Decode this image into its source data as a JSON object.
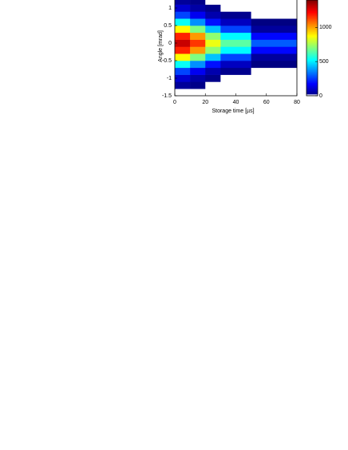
{
  "chart_data": {
    "type": "heatmap",
    "xlabel": "Storage time [µs]",
    "ylabel": "Angle [mrad]",
    "x_edges": [
      0,
      10,
      20,
      30,
      50,
      80
    ],
    "y_edges": [
      -1.3,
      -1.1,
      -0.9,
      -0.7,
      -0.5,
      -0.3,
      -0.1,
      0.1,
      0.3,
      0.5,
      0.7,
      0.9,
      1.1,
      1.3
    ],
    "values": [
      [
        37,
        110,
        268,
        534,
        876,
        1178,
        1300,
        1178,
        876,
        534,
        268,
        110,
        37
      ],
      [
        13,
        51,
        156,
        373,
        698,
        1015,
        1150,
        1015,
        698,
        373,
        156,
        51,
        13
      ],
      [
        0,
        14,
        62,
        195,
        442,
        722,
        850,
        722,
        442,
        195,
        62,
        14,
        0
      ],
      [
        0,
        0,
        18,
        88,
        267,
        520,
        650,
        520,
        267,
        88,
        18,
        0,
        0
      ],
      [
        0,
        0,
        0,
        3,
        41,
        182,
        300,
        182,
        41,
        3,
        0,
        0,
        0
      ]
    ],
    "xlim": [
      0,
      80
    ],
    "xticks": [
      0,
      20,
      40,
      60,
      80
    ],
    "ylim": [
      -1.5,
      1.25
    ],
    "yticks": [
      -1.5,
      -1,
      -0.5,
      0,
      0.5,
      1
    ],
    "clim": [
      0,
      1400
    ],
    "cticks": [
      0,
      500,
      1000
    ],
    "colormap": "jet"
  }
}
